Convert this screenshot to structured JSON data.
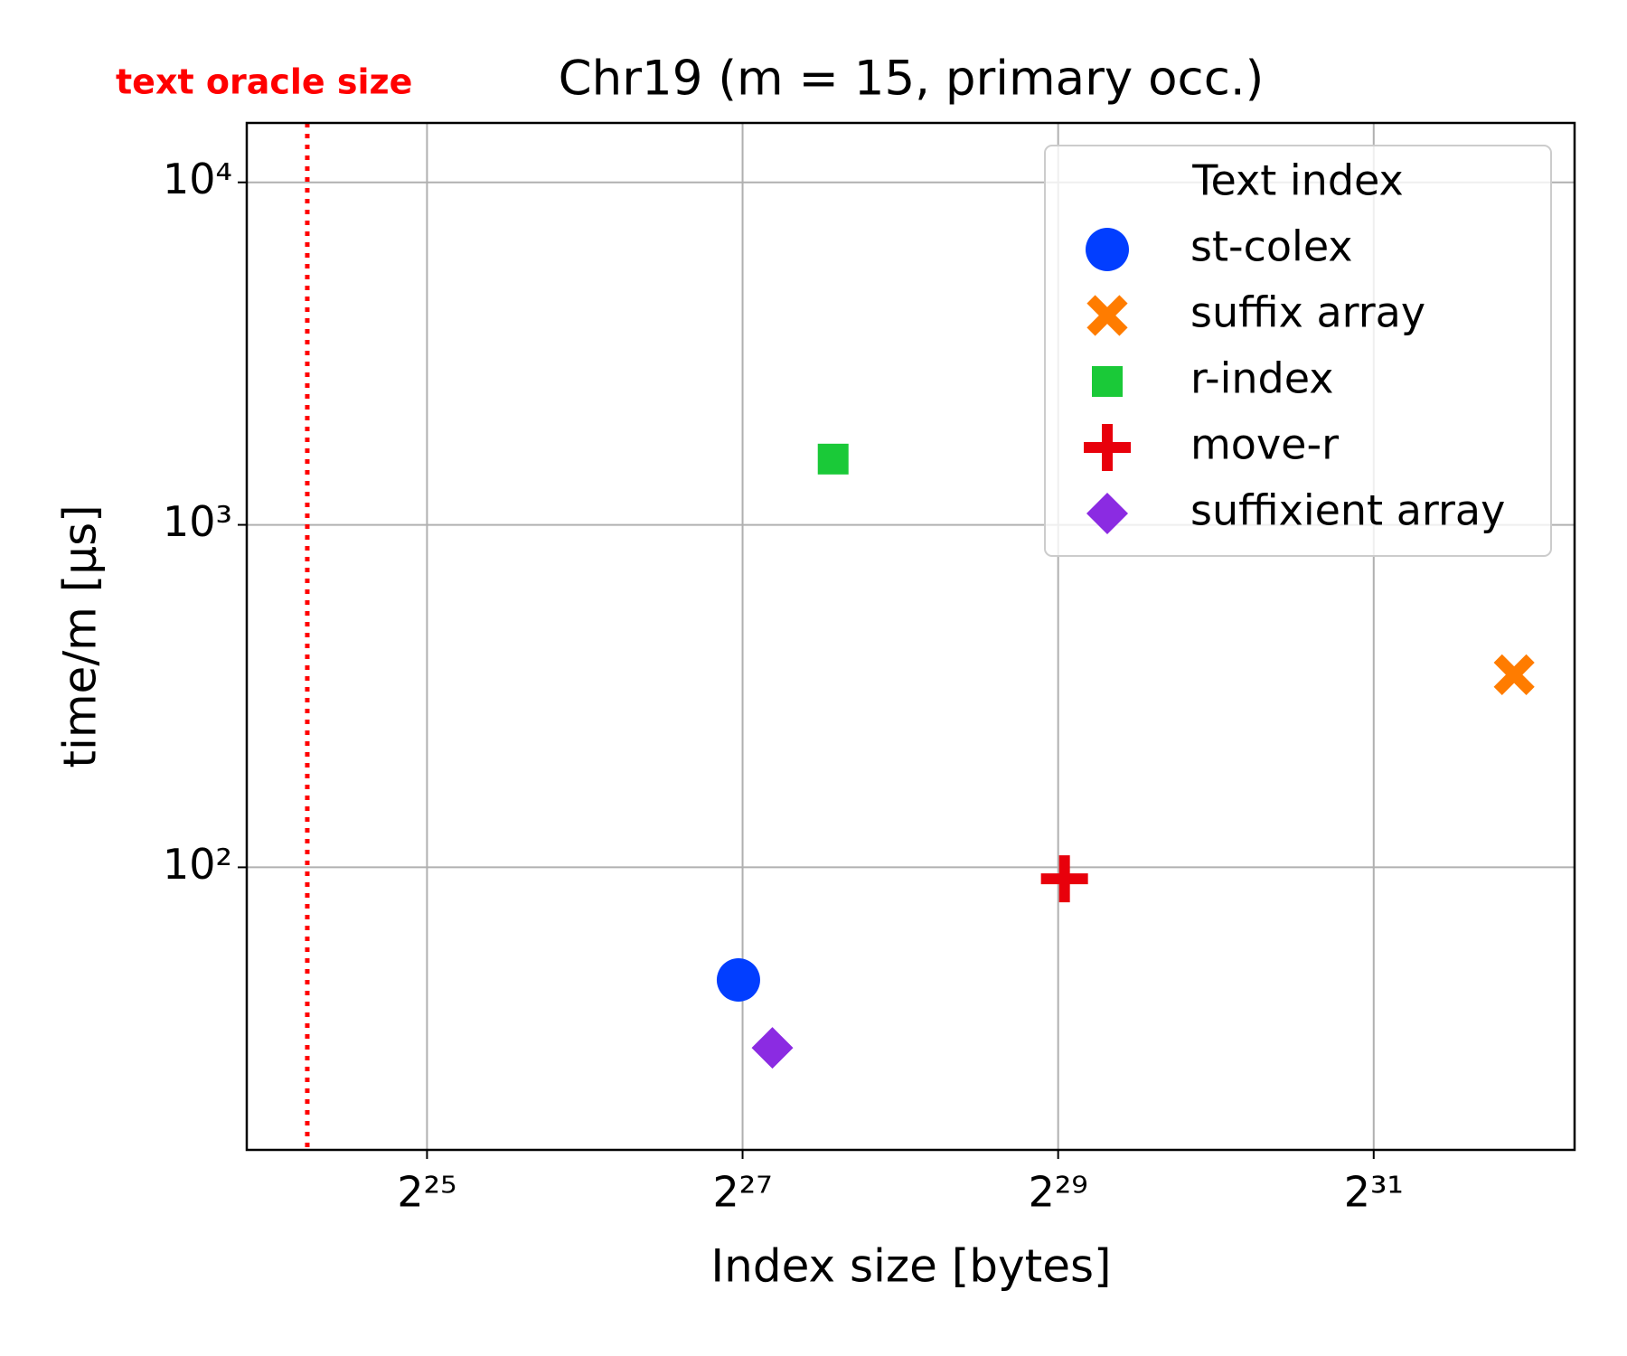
{
  "chart_data": {
    "type": "scatter",
    "title": "Chr19 (m = 15, primary occ.)",
    "x_label": "Index size [bytes]",
    "y_label": "time/m [µs]",
    "x_log_base": 2,
    "y_log_base": 10,
    "xlim": [
      15200000,
      5190000000
    ],
    "ylim": [
      14.96,
      14910
    ],
    "xticks": [
      {
        "value": 33554432,
        "label": "2²⁵"
      },
      {
        "value": 134217728,
        "label": "2²⁷"
      },
      {
        "value": 536870912,
        "label": "2²⁹"
      },
      {
        "value": 2147483648,
        "label": "2³¹"
      }
    ],
    "yticks": [
      {
        "value": 100,
        "label": "10²"
      },
      {
        "value": 1000,
        "label": "10³"
      },
      {
        "value": 10000,
        "label": "10⁴"
      }
    ],
    "grid": true,
    "legend_title": "Text index",
    "legend_loc": "upper right",
    "vlines": [
      {
        "x": 19830000,
        "label": "text oracle size",
        "color": "#ff0000"
      }
    ],
    "series": [
      {
        "name": "st-colex",
        "color": "#023eff",
        "marker": "circle",
        "x": [
          131800000
        ],
        "values": [
          46.9
        ]
      },
      {
        "name": "suffix array",
        "color": "#ff7c00",
        "marker": "x",
        "x": [
          3980000000
        ],
        "values": [
          365
        ]
      },
      {
        "name": "r-index",
        "color": "#1ac938",
        "marker": "square",
        "x": [
          199800000
        ],
        "values": [
          1556
        ]
      },
      {
        "name": "move-r",
        "color": "#e8000b",
        "marker": "plus",
        "x": [
          552000000
        ],
        "values": [
          92.6
        ]
      },
      {
        "name": "suffixient array",
        "color": "#8b2be2",
        "marker": "diamond",
        "x": [
          153000000
        ],
        "values": [
          29.7
        ]
      }
    ]
  }
}
